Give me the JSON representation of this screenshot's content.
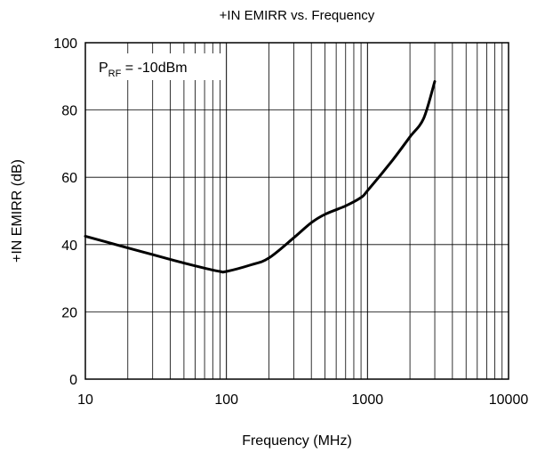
{
  "chart_data": {
    "type": "line",
    "title": "+IN EMIRR vs. Frequency",
    "xlabel": "Frequency (MHz)",
    "ylabel": "+IN EMIRR (dB)",
    "x_scale": "log",
    "xlim": [
      10,
      10000
    ],
    "ylim": [
      0,
      100
    ],
    "x_ticks": [
      10,
      100,
      1000,
      10000
    ],
    "y_ticks": [
      0,
      20,
      40,
      60,
      80,
      100
    ],
    "grid": true,
    "legend": "none",
    "annotation": {
      "main": "P",
      "sub": "RF",
      "suffix": " = -10dBm",
      "position": "top-left"
    },
    "series": [
      {
        "color": "#000000",
        "x": [
          10,
          20,
          30,
          50,
          70,
          90,
          100,
          150,
          200,
          300,
          400,
          500,
          700,
          900,
          1000,
          1500,
          2000,
          2500,
          3000
        ],
        "y": [
          42.5,
          39,
          37,
          34.5,
          33,
          32,
          32,
          34,
          36,
          42,
          46.5,
          49,
          51.5,
          54,
          56,
          65,
          72,
          77.5,
          88.5
        ]
      }
    ]
  }
}
